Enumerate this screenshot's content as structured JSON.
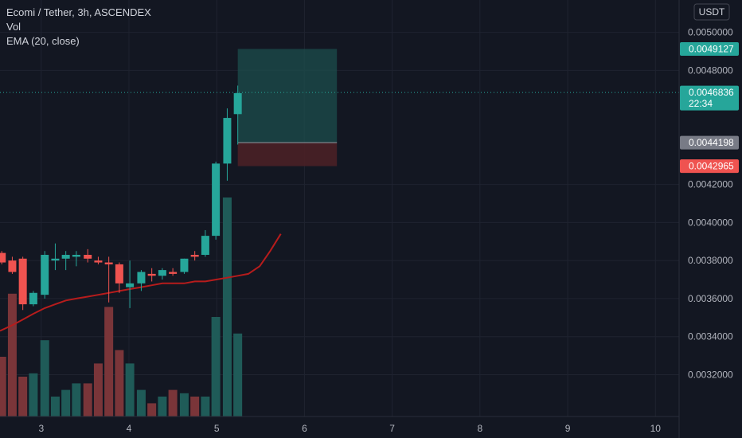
{
  "legend": {
    "title": "Ecomi / Tether, 3h, ASCENDEX",
    "vol": "Vol",
    "ema": "EMA (20, close)"
  },
  "currency": "USDT",
  "colors": {
    "background": "#131722",
    "grid": "#1f2330",
    "up": "#26a69a",
    "down": "#ef5350",
    "vol_up": "#1f5b58",
    "vol_down": "#7a3539",
    "ema": "#b71c1c",
    "axis_text": "#b2b5be",
    "target_fill": "#1b4a4a",
    "stop_fill": "#4a2026",
    "entry_tag": "#787b86"
  },
  "price_tags": {
    "target": "0.0049127",
    "current": "0.0046836",
    "countdown": "22:34",
    "entry": "0.0044198",
    "stop": "0.0042965"
  },
  "chart_data": {
    "type": "candlestick",
    "title": "Ecomi / Tether, 3h, ASCENDEX",
    "x_tick_labels": [
      "3",
      "4",
      "5",
      "6",
      "7",
      "8",
      "9",
      "10"
    ],
    "x_tick_positions": [
      3,
      4,
      5,
      6,
      7,
      8,
      9,
      10
    ],
    "y_tick_labels": [
      "0.0032000",
      "0.0034000",
      "0.0036000",
      "0.0038000",
      "0.0040000",
      "0.0042000",
      "0.0048000",
      "0.0050000"
    ],
    "y_ticks": [
      0.0032,
      0.0034,
      0.0036,
      0.0038,
      0.004,
      0.0042,
      0.0048,
      0.005
    ],
    "x_range": [
      2.53,
      10.27
    ],
    "y_range": [
      0.00298,
      0.00517
    ],
    "grid": true,
    "candles": [
      {
        "t": 2.55,
        "o": 0.00384,
        "h": 0.00385,
        "l": 0.00378,
        "c": 0.00379
      },
      {
        "t": 2.67,
        "o": 0.0038,
        "h": 0.00382,
        "l": 0.00373,
        "c": 0.00374
      },
      {
        "t": 2.79,
        "o": 0.00381,
        "h": 0.00382,
        "l": 0.00354,
        "c": 0.00357
      },
      {
        "t": 2.91,
        "o": 0.00357,
        "h": 0.00364,
        "l": 0.00356,
        "c": 0.00363
      },
      {
        "t": 3.04,
        "o": 0.00362,
        "h": 0.00385,
        "l": 0.0036,
        "c": 0.00383
      },
      {
        "t": 3.16,
        "o": 0.0038,
        "h": 0.00389,
        "l": 0.00375,
        "c": 0.00381
      },
      {
        "t": 3.28,
        "o": 0.00381,
        "h": 0.00385,
        "l": 0.00375,
        "c": 0.00383
      },
      {
        "t": 3.4,
        "o": 0.00382,
        "h": 0.00385,
        "l": 0.00377,
        "c": 0.00383
      },
      {
        "t": 3.53,
        "o": 0.00383,
        "h": 0.00386,
        "l": 0.00379,
        "c": 0.00381
      },
      {
        "t": 3.65,
        "o": 0.0038,
        "h": 0.00382,
        "l": 0.00378,
        "c": 0.00379
      },
      {
        "t": 3.77,
        "o": 0.00379,
        "h": 0.00382,
        "l": 0.00358,
        "c": 0.00378
      },
      {
        "t": 3.89,
        "o": 0.00378,
        "h": 0.00379,
        "l": 0.00363,
        "c": 0.00368
      },
      {
        "t": 4.01,
        "o": 0.00366,
        "h": 0.0038,
        "l": 0.00355,
        "c": 0.00368
      },
      {
        "t": 4.14,
        "o": 0.00368,
        "h": 0.00375,
        "l": 0.00364,
        "c": 0.00374
      },
      {
        "t": 4.26,
        "o": 0.00373,
        "h": 0.00376,
        "l": 0.00369,
        "c": 0.00372
      },
      {
        "t": 4.38,
        "o": 0.00372,
        "h": 0.00376,
        "l": 0.0037,
        "c": 0.00375
      },
      {
        "t": 4.5,
        "o": 0.00374,
        "h": 0.00376,
        "l": 0.00372,
        "c": 0.00373
      },
      {
        "t": 4.63,
        "o": 0.00374,
        "h": 0.00381,
        "l": 0.00373,
        "c": 0.00381
      },
      {
        "t": 4.75,
        "o": 0.00383,
        "h": 0.00385,
        "l": 0.0038,
        "c": 0.00382
      },
      {
        "t": 4.87,
        "o": 0.00383,
        "h": 0.00396,
        "l": 0.00382,
        "c": 0.00393
      },
      {
        "t": 4.99,
        "o": 0.00393,
        "h": 0.00432,
        "l": 0.00391,
        "c": 0.00431
      },
      {
        "t": 5.12,
        "o": 0.00431,
        "h": 0.0046,
        "l": 0.00422,
        "c": 0.00455
      },
      {
        "t": 5.24,
        "o": 0.00457,
        "h": 0.00472,
        "l": 0.00441,
        "c": 0.00468
      }
    ],
    "volume": [
      0.0375,
      0.0771,
      0.025,
      0.0271,
      0.0479,
      0.0125,
      0.0167,
      0.0208,
      0.0208,
      0.0333,
      0.0688,
      0.0417,
      0.0333,
      0.0167,
      0.0083,
      0.0125,
      0.0167,
      0.0146,
      0.0125,
      0.0125,
      0.0625,
      0.1375,
      0.0521
    ],
    "ema": {
      "x": [
        2.53,
        2.67,
        2.79,
        2.91,
        3.04,
        3.16,
        3.28,
        3.4,
        3.53,
        3.65,
        3.77,
        3.89,
        4.01,
        4.14,
        4.26,
        4.38,
        4.5,
        4.63,
        4.75,
        4.87,
        4.99,
        5.12,
        5.24,
        5.36,
        5.49,
        5.61,
        5.73
      ],
      "y": [
        0.00343,
        0.00346,
        0.00349,
        0.00352,
        0.00355,
        0.00357,
        0.00359,
        0.0036,
        0.00361,
        0.00362,
        0.00363,
        0.00364,
        0.00365,
        0.00366,
        0.00367,
        0.00368,
        0.00368,
        0.00368,
        0.00369,
        0.00369,
        0.0037,
        0.00371,
        0.00372,
        0.00373,
        0.00377,
        0.00385,
        0.00394
      ]
    },
    "position": {
      "x_start": 5.24,
      "x_end": 6.37,
      "target": 0.0049127,
      "entry": 0.0044198,
      "stop": 0.0042965
    },
    "current_price": 0.0046836
  }
}
